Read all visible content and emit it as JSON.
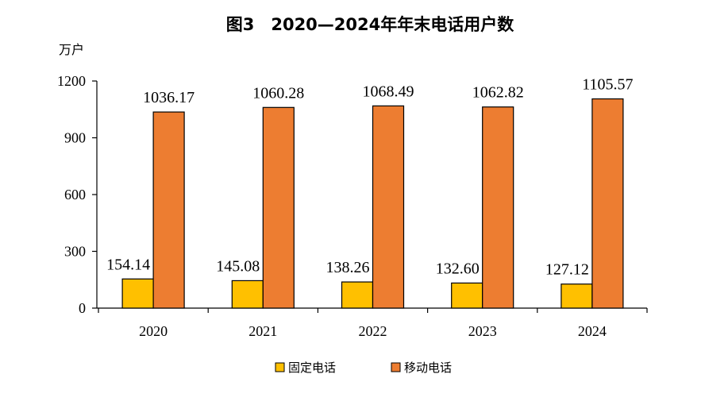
{
  "chart_data": {
    "type": "bar",
    "title": "图3　2020—2024年年末电话用户数",
    "ylabel": "万户",
    "ylim": [
      0,
      1200
    ],
    "yticks": [
      0,
      300,
      600,
      900,
      1200
    ],
    "categories": [
      "2020",
      "2021",
      "2022",
      "2023",
      "2024"
    ],
    "series": [
      {
        "name": "固定电话",
        "color": "#FFC000",
        "values": [
          154.14,
          145.08,
          138.26,
          132.6,
          127.12
        ],
        "labels": [
          "154.14",
          "145.08",
          "138.26",
          "132.60",
          "127.12"
        ]
      },
      {
        "name": "移动电话",
        "color": "#ED7D31",
        "values": [
          1036.17,
          1060.28,
          1068.49,
          1062.82,
          1105.57
        ],
        "labels": [
          "1036.17",
          "1060.28",
          "1068.49",
          "1062.82",
          "1105.57"
        ]
      }
    ],
    "legend_position": "bottom",
    "grid": false
  }
}
